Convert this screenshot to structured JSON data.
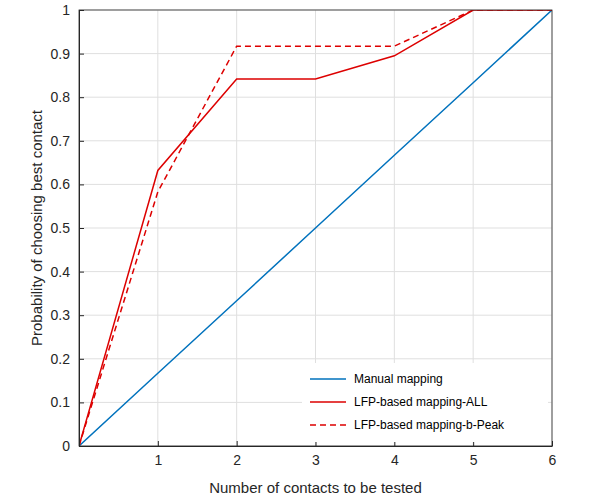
{
  "chart_data": {
    "type": "line",
    "x_label": "Number of contacts to be tested",
    "y_label": "Probability of choosing best contact",
    "x": [
      0,
      1,
      2,
      3,
      4,
      5,
      6
    ],
    "series": [
      {
        "name": "Manual mapping",
        "color": "#0072bd",
        "line_style": "solid",
        "values": [
          0,
          0.167,
          0.333,
          0.5,
          0.667,
          0.833,
          1
        ]
      },
      {
        "name": "LFP-based mapping-ALL",
        "color": "#dd0000",
        "line_style": "solid",
        "values": [
          0,
          0.632,
          0.842,
          0.842,
          0.895,
          1,
          1
        ]
      },
      {
        "name": "LFP-based mapping-b-Peak",
        "color": "#dd0000",
        "line_style": "dashed",
        "values": [
          0,
          0.583,
          0.917,
          0.917,
          0.917,
          1,
          1
        ]
      }
    ],
    "xlim": [
      0,
      6
    ],
    "xticks": [
      1,
      2,
      3,
      4,
      5,
      6
    ],
    "ylim": [
      0,
      1
    ],
    "yticks": [
      0,
      0.1,
      0.2,
      0.3,
      0.4,
      0.5,
      0.6,
      0.7,
      0.8,
      0.9,
      1
    ],
    "grid": true,
    "legend": "lower right"
  }
}
